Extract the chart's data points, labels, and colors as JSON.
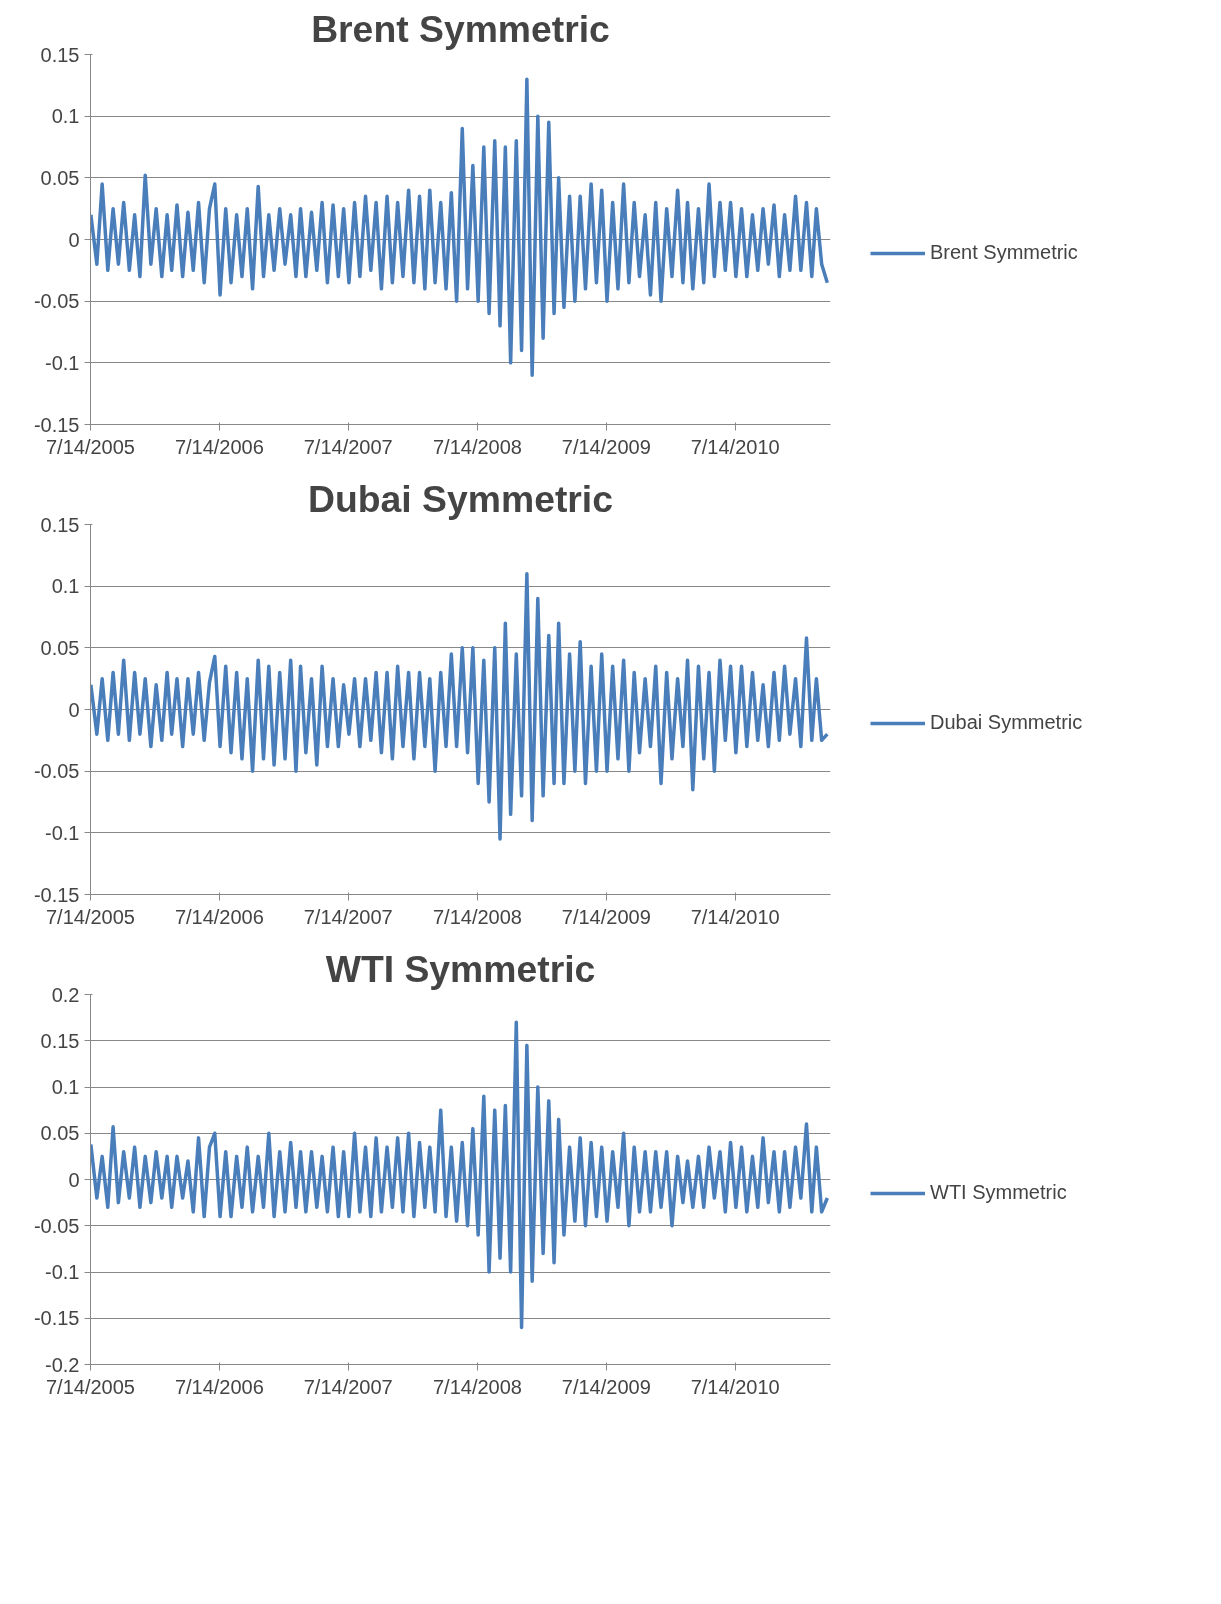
{
  "chart_data": [
    {
      "type": "line",
      "title": "Brent Symmetric",
      "legend": "right",
      "grid": "y",
      "marker": "none",
      "line_style": "solid",
      "xlim": [
        "2005-07-14",
        "2011-04-10"
      ],
      "ylim": [
        -0.15,
        0.15
      ],
      "yticks": [
        0.15,
        0.1,
        0.05,
        0,
        {
          "value": -0.05,
          "label": "-0.05"
        },
        {
          "value": -0.1,
          "label": "-0.1"
        },
        {
          "value": -0.15,
          "label": "-0.15"
        }
      ],
      "xticks": [
        {
          "value": "2005-07-14",
          "label": "7/14/2005"
        },
        {
          "value": "2006-07-14",
          "label": "7/14/2006"
        },
        {
          "value": "2007-07-14",
          "label": "7/14/2007"
        },
        {
          "value": "2008-07-14",
          "label": "7/14/2008"
        },
        {
          "value": "2009-07-14",
          "label": "7/14/2009"
        },
        {
          "value": "2010-07-14",
          "label": "7/14/2010"
        }
      ],
      "series": [
        {
          "name": "Brent Symmetric",
          "color": "#4a7ebb",
          "x": [
            "2005-07-15",
            "2005-08-01",
            "2005-08-16",
            "2005-09-01",
            "2005-09-16",
            "2005-10-01",
            "2005-10-16",
            "2005-11-01",
            "2005-11-16",
            "2005-12-01",
            "2005-12-16",
            "2006-01-01",
            "2006-01-16",
            "2006-02-01",
            "2006-02-16",
            "2006-03-01",
            "2006-03-16",
            "2006-04-01",
            "2006-04-16",
            "2006-05-01",
            "2006-05-16",
            "2006-06-01",
            "2006-06-16",
            "2006-07-01",
            "2006-07-16",
            "2006-08-01",
            "2006-08-16",
            "2006-09-01",
            "2006-09-16",
            "2006-10-01",
            "2006-10-16",
            "2006-11-01",
            "2006-11-16",
            "2006-12-01",
            "2006-12-16",
            "2007-01-01",
            "2007-01-16",
            "2007-02-01",
            "2007-02-16",
            "2007-03-01",
            "2007-03-16",
            "2007-04-01",
            "2007-04-16",
            "2007-05-01",
            "2007-05-16",
            "2007-06-01",
            "2007-06-16",
            "2007-07-01",
            "2007-07-16",
            "2007-08-01",
            "2007-08-16",
            "2007-09-01",
            "2007-09-16",
            "2007-10-01",
            "2007-10-16",
            "2007-11-01",
            "2007-11-16",
            "2007-12-01",
            "2007-12-16",
            "2008-01-01",
            "2008-01-16",
            "2008-02-01",
            "2008-02-16",
            "2008-03-01",
            "2008-03-16",
            "2008-04-01",
            "2008-04-16",
            "2008-05-01",
            "2008-05-16",
            "2008-06-01",
            "2008-06-16",
            "2008-07-01",
            "2008-07-16",
            "2008-08-01",
            "2008-08-16",
            "2008-09-01",
            "2008-09-16",
            "2008-10-01",
            "2008-10-16",
            "2008-11-01",
            "2008-11-16",
            "2008-12-01",
            "2008-12-16",
            "2009-01-01",
            "2009-01-16",
            "2009-02-01",
            "2009-02-16",
            "2009-03-01",
            "2009-03-16",
            "2009-04-01",
            "2009-04-16",
            "2009-05-01",
            "2009-05-16",
            "2009-06-01",
            "2009-06-16",
            "2009-07-01",
            "2009-07-16",
            "2009-08-01",
            "2009-08-16",
            "2009-09-01",
            "2009-09-16",
            "2009-10-01",
            "2009-10-16",
            "2009-11-01",
            "2009-11-16",
            "2009-12-01",
            "2009-12-16",
            "2010-01-01",
            "2010-01-16",
            "2010-02-01",
            "2010-02-16",
            "2010-03-01",
            "2010-03-16",
            "2010-04-01",
            "2010-04-16",
            "2010-05-01",
            "2010-05-16",
            "2010-06-01",
            "2010-06-16",
            "2010-07-01",
            "2010-07-16",
            "2010-08-01",
            "2010-08-16",
            "2010-09-01",
            "2010-09-16",
            "2010-10-01",
            "2010-10-16",
            "2010-11-01",
            "2010-11-16",
            "2010-12-01",
            "2010-12-16",
            "2011-01-01",
            "2011-01-16",
            "2011-02-01",
            "2011-02-16",
            "2011-03-01",
            "2011-03-16",
            "2011-04-01"
          ],
          "values": [
            0.02,
            -0.02,
            0.045,
            -0.025,
            0.025,
            -0.02,
            0.03,
            -0.025,
            0.02,
            -0.03,
            0.052,
            -0.02,
            0.025,
            -0.03,
            0.02,
            -0.025,
            0.028,
            -0.03,
            0.022,
            -0.025,
            0.03,
            -0.035,
            0.025,
            0.045,
            -0.045,
            0.025,
            -0.035,
            0.02,
            -0.03,
            0.025,
            -0.04,
            0.043,
            -0.03,
            0.02,
            -0.025,
            0.025,
            -0.02,
            0.02,
            -0.03,
            0.025,
            -0.03,
            0.022,
            -0.025,
            0.03,
            -0.035,
            0.028,
            -0.03,
            0.025,
            -0.035,
            0.03,
            -0.03,
            0.035,
            -0.025,
            0.03,
            -0.04,
            0.035,
            -0.035,
            0.03,
            -0.03,
            0.04,
            -0.035,
            0.035,
            -0.04,
            0.04,
            -0.035,
            0.03,
            -0.04,
            0.038,
            -0.05,
            0.09,
            -0.04,
            0.06,
            -0.05,
            0.075,
            -0.06,
            0.08,
            -0.07,
            0.075,
            -0.1,
            0.08,
            -0.09,
            0.13,
            -0.11,
            0.1,
            -0.08,
            0.095,
            -0.06,
            0.05,
            -0.055,
            0.035,
            -0.05,
            0.035,
            -0.04,
            0.045,
            -0.035,
            0.04,
            -0.05,
            0.03,
            -0.04,
            0.045,
            -0.035,
            0.03,
            -0.03,
            0.02,
            -0.045,
            0.03,
            -0.05,
            0.025,
            -0.03,
            0.04,
            -0.035,
            0.03,
            -0.04,
            0.025,
            -0.035,
            0.045,
            -0.03,
            0.03,
            -0.025,
            0.03,
            -0.03,
            0.025,
            -0.03,
            0.02,
            -0.025,
            0.025,
            -0.02,
            0.028,
            -0.03,
            0.02,
            -0.025,
            0.035,
            -0.025,
            0.03,
            -0.03,
            0.025,
            -0.02,
            -0.035
          ]
        }
      ]
    },
    {
      "type": "line",
      "title": "Dubai Symmetric",
      "legend": "right",
      "grid": "y",
      "marker": "none",
      "line_style": "solid",
      "xlim": [
        "2005-07-14",
        "2011-04-10"
      ],
      "ylim": [
        -0.15,
        0.15
      ],
      "yticks": [
        0.15,
        0.1,
        0.05,
        0,
        {
          "value": -0.05,
          "label": "-0.05"
        },
        {
          "value": -0.1,
          "label": "-0.1"
        },
        {
          "value": -0.15,
          "label": "-0.15"
        }
      ],
      "xticks": [
        {
          "value": "2005-07-14",
          "label": "7/14/2005"
        },
        {
          "value": "2006-07-14",
          "label": "7/14/2006"
        },
        {
          "value": "2007-07-14",
          "label": "7/14/2007"
        },
        {
          "value": "2008-07-14",
          "label": "7/14/2008"
        },
        {
          "value": "2009-07-14",
          "label": "7/14/2009"
        },
        {
          "value": "2010-07-14",
          "label": "7/14/2010"
        }
      ],
      "series": [
        {
          "name": "Dubai Symmetric",
          "color": "#4a7ebb",
          "x": [
            "2005-07-15",
            "2005-08-01",
            "2005-08-16",
            "2005-09-01",
            "2005-09-16",
            "2005-10-01",
            "2005-10-16",
            "2005-11-01",
            "2005-11-16",
            "2005-12-01",
            "2005-12-16",
            "2006-01-01",
            "2006-01-16",
            "2006-02-01",
            "2006-02-16",
            "2006-03-01",
            "2006-03-16",
            "2006-04-01",
            "2006-04-16",
            "2006-05-01",
            "2006-05-16",
            "2006-06-01",
            "2006-06-16",
            "2006-07-01",
            "2006-07-16",
            "2006-08-01",
            "2006-08-16",
            "2006-09-01",
            "2006-09-16",
            "2006-10-01",
            "2006-10-16",
            "2006-11-01",
            "2006-11-16",
            "2006-12-01",
            "2006-12-16",
            "2007-01-01",
            "2007-01-16",
            "2007-02-01",
            "2007-02-16",
            "2007-03-01",
            "2007-03-16",
            "2007-04-01",
            "2007-04-16",
            "2007-05-01",
            "2007-05-16",
            "2007-06-01",
            "2007-06-16",
            "2007-07-01",
            "2007-07-16",
            "2007-08-01",
            "2007-08-16",
            "2007-09-01",
            "2007-09-16",
            "2007-10-01",
            "2007-10-16",
            "2007-11-01",
            "2007-11-16",
            "2007-12-01",
            "2007-12-16",
            "2008-01-01",
            "2008-01-16",
            "2008-02-01",
            "2008-02-16",
            "2008-03-01",
            "2008-03-16",
            "2008-04-01",
            "2008-04-16",
            "2008-05-01",
            "2008-05-16",
            "2008-06-01",
            "2008-06-16",
            "2008-07-01",
            "2008-07-16",
            "2008-08-01",
            "2008-08-16",
            "2008-09-01",
            "2008-09-16",
            "2008-10-01",
            "2008-10-16",
            "2008-11-01",
            "2008-11-16",
            "2008-12-01",
            "2008-12-16",
            "2009-01-01",
            "2009-01-16",
            "2009-02-01",
            "2009-02-16",
            "2009-03-01",
            "2009-03-16",
            "2009-04-01",
            "2009-04-16",
            "2009-05-01",
            "2009-05-16",
            "2009-06-01",
            "2009-06-16",
            "2009-07-01",
            "2009-07-16",
            "2009-08-01",
            "2009-08-16",
            "2009-09-01",
            "2009-09-16",
            "2009-10-01",
            "2009-10-16",
            "2009-11-01",
            "2009-11-16",
            "2009-12-01",
            "2009-12-16",
            "2010-01-01",
            "2010-01-16",
            "2010-02-01",
            "2010-02-16",
            "2010-03-01",
            "2010-03-16",
            "2010-04-01",
            "2010-04-16",
            "2010-05-01",
            "2010-05-16",
            "2010-06-01",
            "2010-06-16",
            "2010-07-01",
            "2010-07-16",
            "2010-08-01",
            "2010-08-16",
            "2010-09-01",
            "2010-09-16",
            "2010-10-01",
            "2010-10-16",
            "2010-11-01",
            "2010-11-16",
            "2010-12-01",
            "2010-12-16",
            "2011-01-01",
            "2011-01-16",
            "2011-02-01",
            "2011-02-16",
            "2011-03-01",
            "2011-03-16",
            "2011-04-01"
          ],
          "values": [
            0.02,
            -0.02,
            0.025,
            -0.025,
            0.03,
            -0.02,
            0.04,
            -0.025,
            0.03,
            -0.02,
            0.025,
            -0.03,
            0.02,
            -0.025,
            0.03,
            -0.02,
            0.025,
            -0.03,
            0.025,
            -0.02,
            0.03,
            -0.025,
            0.022,
            0.043,
            -0.03,
            0.035,
            -0.035,
            0.03,
            -0.04,
            0.025,
            -0.05,
            0.04,
            -0.04,
            0.035,
            -0.045,
            0.03,
            -0.04,
            0.04,
            -0.05,
            0.035,
            -0.035,
            0.025,
            -0.045,
            0.035,
            -0.03,
            0.025,
            -0.03,
            0.02,
            -0.02,
            0.025,
            -0.03,
            0.025,
            -0.025,
            0.03,
            -0.035,
            0.03,
            -0.04,
            0.035,
            -0.03,
            0.03,
            -0.04,
            0.03,
            -0.03,
            0.025,
            -0.05,
            0.03,
            -0.03,
            0.045,
            -0.03,
            0.05,
            -0.035,
            0.05,
            -0.06,
            0.04,
            -0.075,
            0.05,
            -0.105,
            0.07,
            -0.085,
            0.045,
            -0.07,
            0.11,
            -0.09,
            0.09,
            -0.07,
            0.06,
            -0.06,
            0.07,
            -0.06,
            0.045,
            -0.05,
            0.055,
            -0.06,
            0.035,
            -0.05,
            0.045,
            -0.05,
            0.035,
            -0.04,
            0.04,
            -0.05,
            0.03,
            -0.035,
            0.025,
            -0.03,
            0.035,
            -0.06,
            0.03,
            -0.04,
            0.025,
            -0.03,
            0.04,
            -0.065,
            0.035,
            -0.04,
            0.03,
            -0.05,
            0.04,
            -0.025,
            0.035,
            -0.035,
            0.035,
            -0.03,
            0.03,
            -0.025,
            0.02,
            -0.03,
            0.03,
            -0.025,
            0.035,
            -0.02,
            0.025,
            -0.03,
            0.058,
            -0.025,
            0.025,
            -0.025,
            -0.02
          ]
        }
      ]
    },
    {
      "type": "line",
      "title": "WTI Symmetric",
      "legend": "right",
      "grid": "y",
      "marker": "none",
      "line_style": "solid",
      "xlim": [
        "2005-07-14",
        "2011-04-10"
      ],
      "ylim": [
        -0.2,
        0.2
      ],
      "yticks": [
        0.2,
        0.15,
        0.1,
        0.05,
        0,
        {
          "value": -0.05,
          "label": "-0.05"
        },
        {
          "value": -0.1,
          "label": "-0.1"
        },
        {
          "value": -0.15,
          "label": "-0.15"
        },
        {
          "value": -0.2,
          "label": "-0.2"
        }
      ],
      "xticks": [
        {
          "value": "2005-07-14",
          "label": "7/14/2005"
        },
        {
          "value": "2006-07-14",
          "label": "7/14/2006"
        },
        {
          "value": "2007-07-14",
          "label": "7/14/2007"
        },
        {
          "value": "2008-07-14",
          "label": "7/14/2008"
        },
        {
          "value": "2009-07-14",
          "label": "7/14/2009"
        },
        {
          "value": "2010-07-14",
          "label": "7/14/2010"
        }
      ],
      "series": [
        {
          "name": "WTI Symmetric",
          "color": "#4a7ebb",
          "x": [
            "2005-07-15",
            "2005-08-01",
            "2005-08-16",
            "2005-09-01",
            "2005-09-16",
            "2005-10-01",
            "2005-10-16",
            "2005-11-01",
            "2005-11-16",
            "2005-12-01",
            "2005-12-16",
            "2006-01-01",
            "2006-01-16",
            "2006-02-01",
            "2006-02-16",
            "2006-03-01",
            "2006-03-16",
            "2006-04-01",
            "2006-04-16",
            "2006-05-01",
            "2006-05-16",
            "2006-06-01",
            "2006-06-16",
            "2006-07-01",
            "2006-07-16",
            "2006-08-01",
            "2006-08-16",
            "2006-09-01",
            "2006-09-16",
            "2006-10-01",
            "2006-10-16",
            "2006-11-01",
            "2006-11-16",
            "2006-12-01",
            "2006-12-16",
            "2007-01-01",
            "2007-01-16",
            "2007-02-01",
            "2007-02-16",
            "2007-03-01",
            "2007-03-16",
            "2007-04-01",
            "2007-04-16",
            "2007-05-01",
            "2007-05-16",
            "2007-06-01",
            "2007-06-16",
            "2007-07-01",
            "2007-07-16",
            "2007-08-01",
            "2007-08-16",
            "2007-09-01",
            "2007-09-16",
            "2007-10-01",
            "2007-10-16",
            "2007-11-01",
            "2007-11-16",
            "2007-12-01",
            "2007-12-16",
            "2008-01-01",
            "2008-01-16",
            "2008-02-01",
            "2008-02-16",
            "2008-03-01",
            "2008-03-16",
            "2008-04-01",
            "2008-04-16",
            "2008-05-01",
            "2008-05-16",
            "2008-06-01",
            "2008-06-16",
            "2008-07-01",
            "2008-07-16",
            "2008-08-01",
            "2008-08-16",
            "2008-09-01",
            "2008-09-16",
            "2008-10-01",
            "2008-10-16",
            "2008-11-01",
            "2008-11-16",
            "2008-12-01",
            "2008-12-16",
            "2009-01-01",
            "2009-01-16",
            "2009-02-01",
            "2009-02-16",
            "2009-03-01",
            "2009-03-16",
            "2009-04-01",
            "2009-04-16",
            "2009-05-01",
            "2009-05-16",
            "2009-06-01",
            "2009-06-16",
            "2009-07-01",
            "2009-07-16",
            "2009-08-01",
            "2009-08-16",
            "2009-09-01",
            "2009-09-16",
            "2009-10-01",
            "2009-10-16",
            "2009-11-01",
            "2009-11-16",
            "2009-12-01",
            "2009-12-16",
            "2010-01-01",
            "2010-01-16",
            "2010-02-01",
            "2010-02-16",
            "2010-03-01",
            "2010-03-16",
            "2010-04-01",
            "2010-04-16",
            "2010-05-01",
            "2010-05-16",
            "2010-06-01",
            "2010-06-16",
            "2010-07-01",
            "2010-07-16",
            "2010-08-01",
            "2010-08-16",
            "2010-09-01",
            "2010-09-16",
            "2010-10-01",
            "2010-10-16",
            "2010-11-01",
            "2010-11-16",
            "2010-12-01",
            "2010-12-16",
            "2011-01-01",
            "2011-01-16",
            "2011-02-01",
            "2011-02-16",
            "2011-03-01",
            "2011-03-16",
            "2011-04-01"
          ],
          "values": [
            0.038,
            -0.02,
            0.025,
            -0.03,
            0.057,
            -0.025,
            0.03,
            -0.02,
            0.035,
            -0.03,
            0.025,
            -0.025,
            0.03,
            -0.02,
            0.025,
            -0.03,
            0.025,
            -0.02,
            0.02,
            -0.035,
            0.045,
            -0.04,
            0.035,
            0.05,
            -0.04,
            0.03,
            -0.04,
            0.025,
            -0.03,
            0.035,
            -0.035,
            0.025,
            -0.03,
            0.05,
            -0.04,
            0.03,
            -0.035,
            0.04,
            -0.03,
            0.03,
            -0.035,
            0.03,
            -0.03,
            0.025,
            -0.035,
            0.035,
            -0.04,
            0.03,
            -0.04,
            0.05,
            -0.035,
            0.035,
            -0.04,
            0.045,
            -0.035,
            0.035,
            -0.03,
            0.045,
            -0.035,
            0.05,
            -0.04,
            0.04,
            -0.03,
            0.035,
            -0.035,
            0.075,
            -0.04,
            0.035,
            -0.045,
            0.04,
            -0.05,
            0.055,
            -0.06,
            0.09,
            -0.1,
            0.075,
            -0.085,
            0.08,
            -0.1,
            0.17,
            -0.16,
            0.145,
            -0.11,
            0.1,
            -0.08,
            0.085,
            -0.09,
            0.065,
            -0.06,
            0.035,
            -0.045,
            0.045,
            -0.05,
            0.04,
            -0.04,
            0.035,
            -0.045,
            0.03,
            -0.03,
            0.05,
            -0.05,
            0.035,
            -0.035,
            0.03,
            -0.035,
            0.03,
            -0.03,
            0.03,
            -0.05,
            0.025,
            -0.025,
            0.02,
            -0.03,
            0.025,
            -0.03,
            0.035,
            -0.02,
            0.03,
            -0.035,
            0.04,
            -0.03,
            0.035,
            -0.035,
            0.025,
            -0.03,
            0.045,
            -0.025,
            0.03,
            -0.035,
            0.03,
            -0.03,
            0.035,
            -0.02,
            0.06,
            -0.035,
            0.035,
            -0.035,
            -0.02
          ]
        }
      ]
    }
  ]
}
